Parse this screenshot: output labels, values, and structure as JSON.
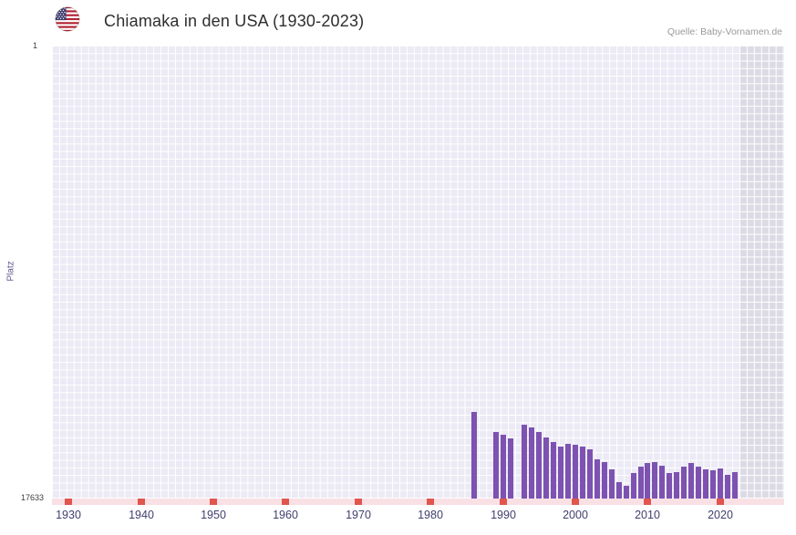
{
  "header": {
    "title": "Chiamaka in den USA (1930-2023)",
    "source": "Quelle: Baby-Vornamen.de"
  },
  "axes": {
    "y_label": "Platz",
    "y_top_label": "1",
    "y_bottom_label": "17633"
  },
  "colors": {
    "bar": "#7d52b0",
    "plot_bg": "#ebeaf5",
    "grid_line": "#ffffff",
    "recent_band": "#dcdbe5",
    "axis_strip": "#f8e0e4",
    "decade_marker": "#e0564e",
    "tick_text": "#3f3f6e"
  },
  "chart_data": {
    "type": "bar",
    "title": "Chiamaka in den USA (1930-2023)",
    "xlabel": "",
    "ylabel": "Platz",
    "legend": false,
    "grid": true,
    "y_axis": {
      "min": 1,
      "max": 17633,
      "inverted": true,
      "top_label": "1",
      "bottom_label": "17633"
    },
    "x_axis": {
      "start": 1930,
      "end": 2023,
      "tick_labels": [
        "1930",
        "1940",
        "1950",
        "1960",
        "1970",
        "1980",
        "1990",
        "2000",
        "2010",
        "2020"
      ]
    },
    "points": [
      {
        "year": 1986,
        "rank": 14250
      },
      {
        "year": 1989,
        "rank": 15050
      },
      {
        "year": 1990,
        "rank": 15150
      },
      {
        "year": 1991,
        "rank": 15300
      },
      {
        "year": 1993,
        "rank": 14750
      },
      {
        "year": 1994,
        "rank": 14850
      },
      {
        "year": 1995,
        "rank": 15050
      },
      {
        "year": 1996,
        "rank": 15250
      },
      {
        "year": 1997,
        "rank": 15450
      },
      {
        "year": 1998,
        "rank": 15600
      },
      {
        "year": 1999,
        "rank": 15500
      },
      {
        "year": 2000,
        "rank": 15550
      },
      {
        "year": 2001,
        "rank": 15600
      },
      {
        "year": 2002,
        "rank": 15700
      },
      {
        "year": 2003,
        "rank": 16100
      },
      {
        "year": 2004,
        "rank": 16200
      },
      {
        "year": 2005,
        "rank": 16500
      },
      {
        "year": 2006,
        "rank": 17000
      },
      {
        "year": 2007,
        "rank": 17150
      },
      {
        "year": 2008,
        "rank": 16650
      },
      {
        "year": 2009,
        "rank": 16400
      },
      {
        "year": 2010,
        "rank": 16250
      },
      {
        "year": 2011,
        "rank": 16200
      },
      {
        "year": 2012,
        "rank": 16350
      },
      {
        "year": 2013,
        "rank": 16650
      },
      {
        "year": 2014,
        "rank": 16600
      },
      {
        "year": 2015,
        "rank": 16400
      },
      {
        "year": 2016,
        "rank": 16250
      },
      {
        "year": 2017,
        "rank": 16400
      },
      {
        "year": 2018,
        "rank": 16500
      },
      {
        "year": 2019,
        "rank": 16550
      },
      {
        "year": 2020,
        "rank": 16450
      },
      {
        "year": 2021,
        "rank": 16700
      },
      {
        "year": 2022,
        "rank": 16600
      }
    ]
  }
}
